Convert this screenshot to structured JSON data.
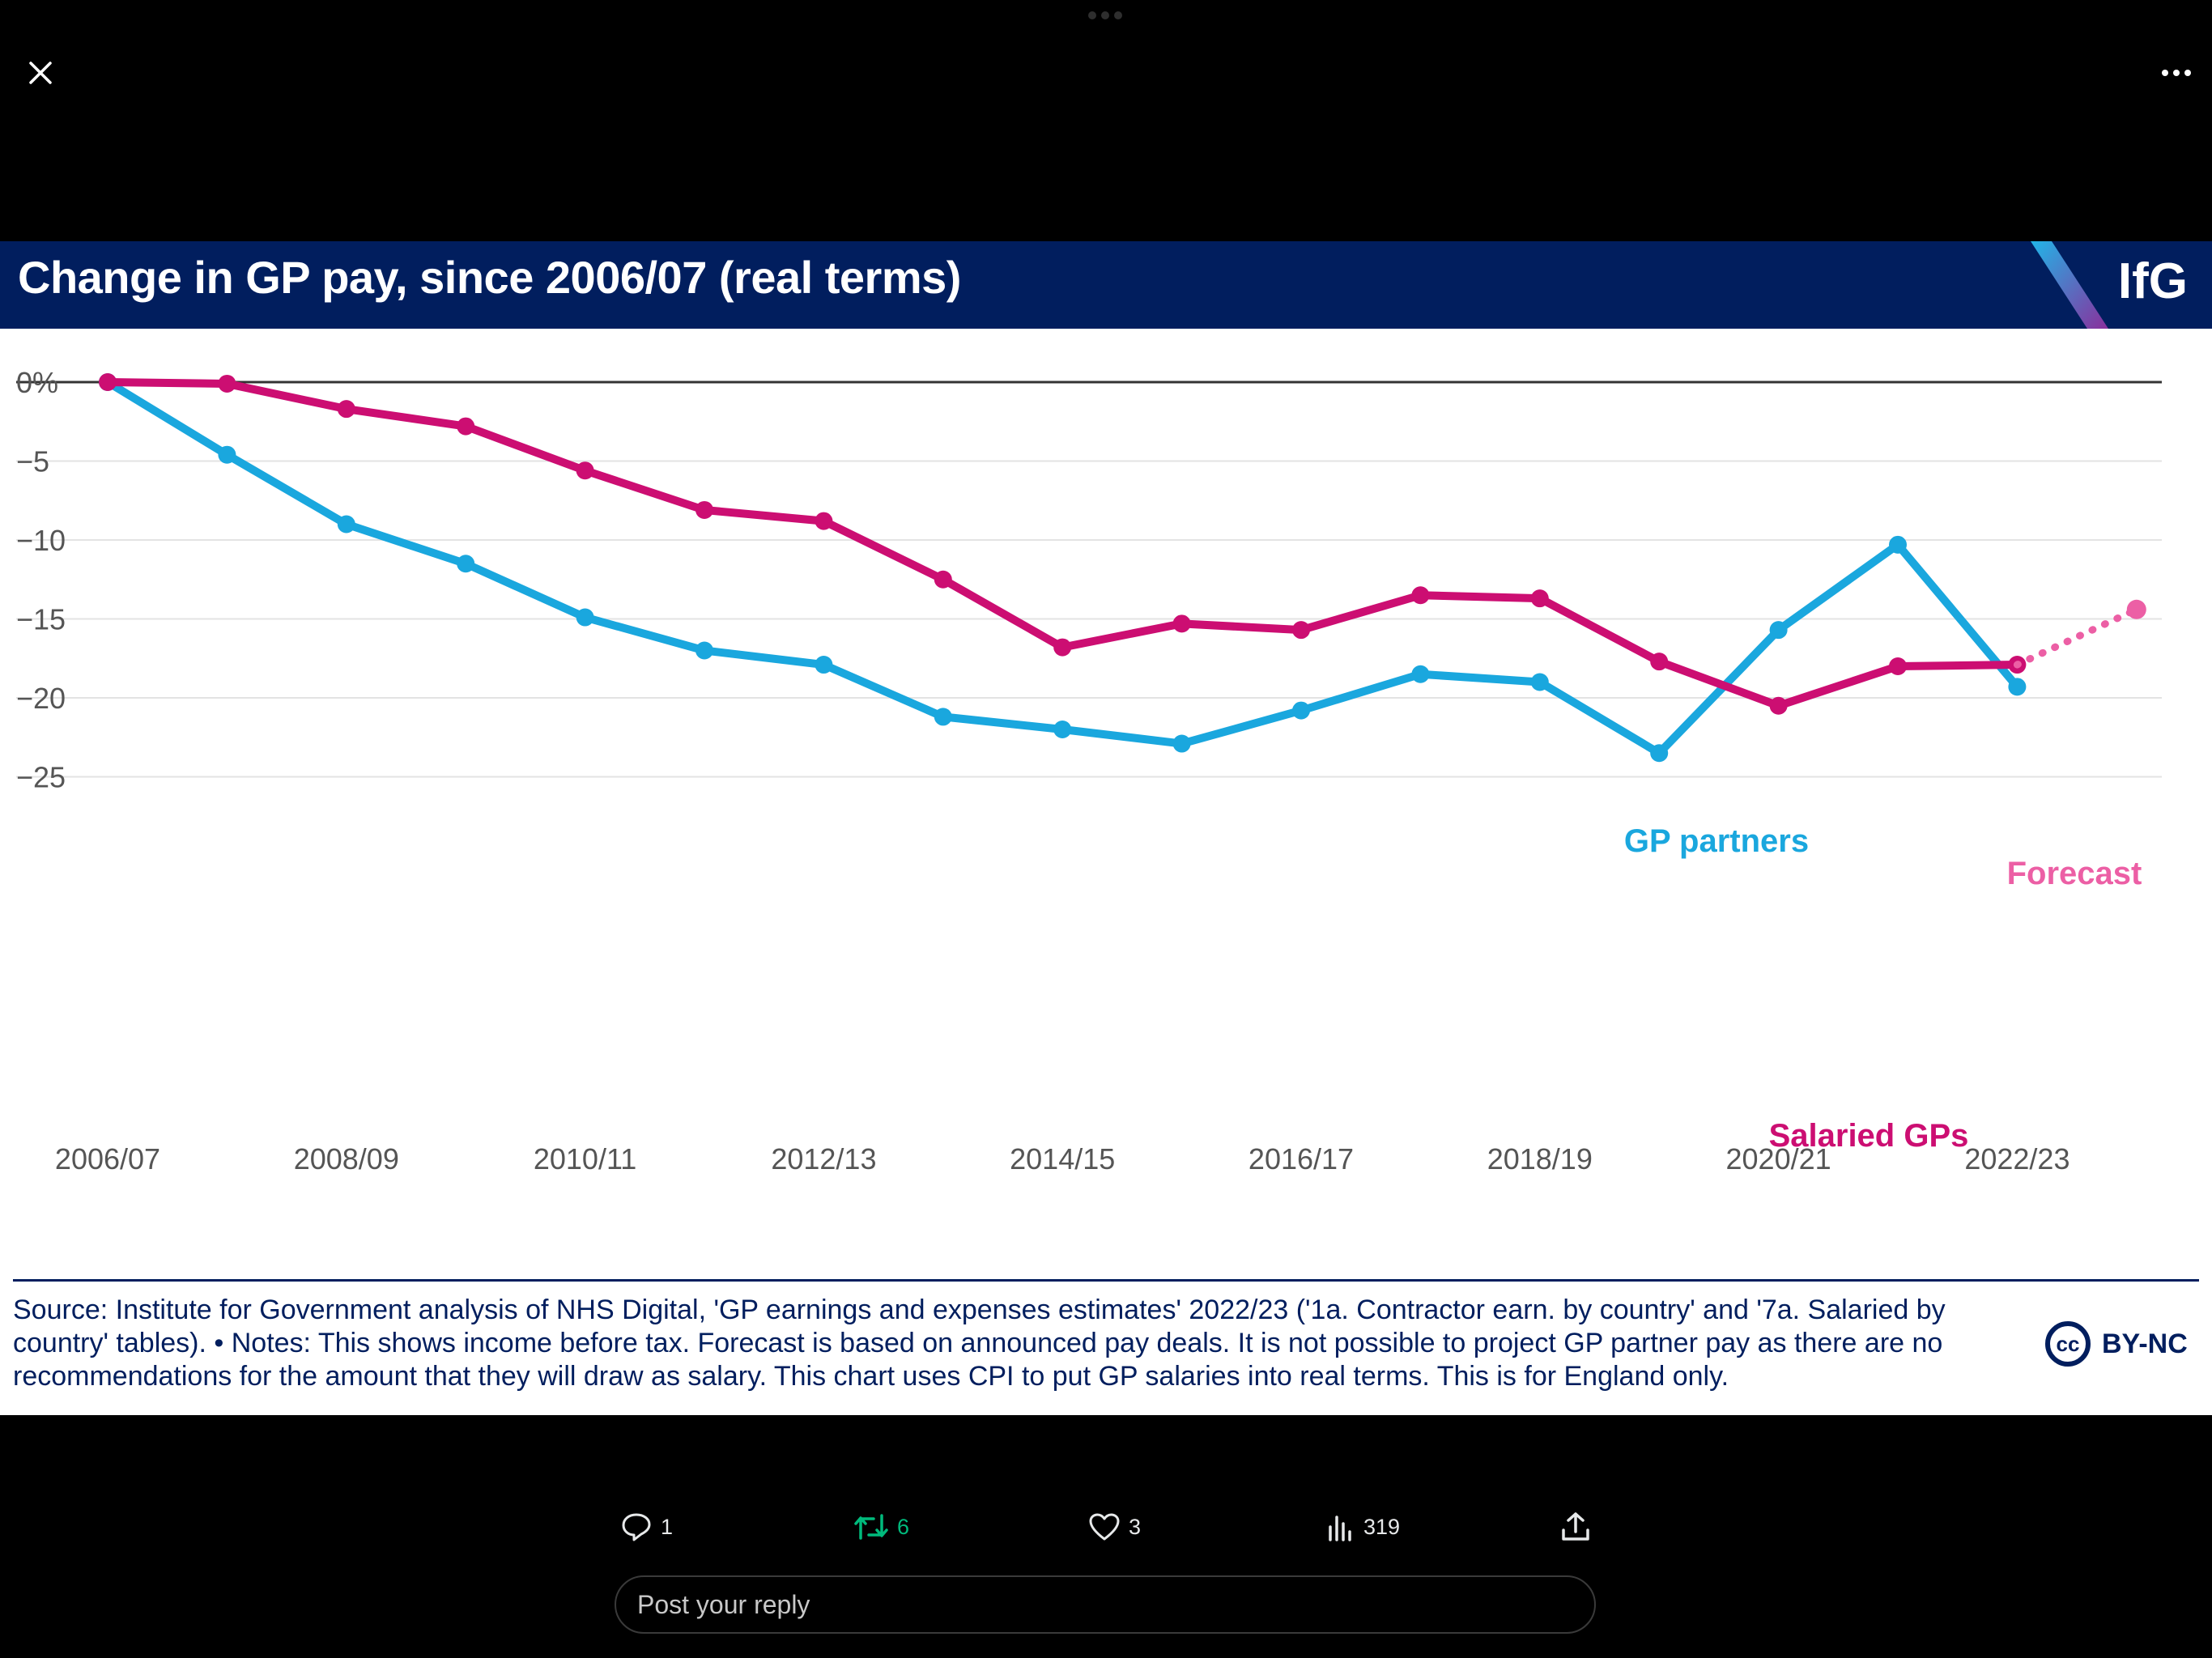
{
  "viewer": {
    "close_icon": "close-icon",
    "more_icon": "more-horizontal-icon"
  },
  "card": {
    "title": "Change in GP pay, since 2006/07 (real terms)",
    "logo": "IfG",
    "source_text": "Source: Institute for Government analysis of NHS Digital, 'GP earnings and expenses estimates' 2022/23 ('1a. Contractor earn. by country' and '7a. Salaried by country' tables). • Notes: This shows income before tax. Forecast is based on announced pay deals. It is not possible to project GP partner pay as there are no recommendations for the amount that they will draw as salary. This chart uses CPI to put GP salaries into real terms. This is for England only.",
    "license_icon": "cc",
    "license_label": "BY-NC",
    "colors": {
      "header_bg": "#011e5e",
      "gp_partners": "#1aa7de",
      "salaried": "#cc0e72",
      "forecast": "#ec5fa5"
    }
  },
  "chart_data": {
    "type": "line",
    "title": "Change in GP pay, since 2006/07 (real terms)",
    "x": [
      "2006/07",
      "2007/08",
      "2008/09",
      "2009/10",
      "2010/11",
      "2011/12",
      "2012/13",
      "2013/14",
      "2014/15",
      "2015/16",
      "2016/17",
      "2017/18",
      "2018/19",
      "2019/20",
      "2020/21",
      "2021/22",
      "2022/23",
      "2023/24"
    ],
    "x_tick_labels": [
      "2006/07",
      "2008/09",
      "2010/11",
      "2012/13",
      "2014/15",
      "2016/17",
      "2018/19",
      "2020/21",
      "2022/23"
    ],
    "y_ticks": [
      "0%",
      "−5",
      "−10",
      "−15",
      "−20",
      "−25"
    ],
    "ylim": [
      -25,
      0
    ],
    "grid": true,
    "series": [
      {
        "name": "GP partners",
        "color": "#1aa7de",
        "values": [
          0,
          -4.6,
          -9.0,
          -11.5,
          -14.9,
          -17.0,
          -17.9,
          -21.2,
          -22.0,
          -22.9,
          -20.8,
          -18.5,
          -19.0,
          -23.5,
          -15.7,
          -10.3,
          -19.3,
          null
        ]
      },
      {
        "name": "Salaried GPs",
        "color": "#cc0e72",
        "values": [
          0,
          -0.1,
          -1.7,
          -2.8,
          -5.6,
          -8.1,
          -8.8,
          -12.5,
          -16.8,
          -15.3,
          -15.7,
          -13.5,
          -13.7,
          -17.7,
          -20.5,
          -18.0,
          -17.9,
          null
        ]
      },
      {
        "name": "Forecast",
        "color": "#ec5fa5",
        "style": "dotted",
        "values": [
          null,
          null,
          null,
          null,
          null,
          null,
          null,
          null,
          null,
          null,
          null,
          null,
          null,
          null,
          null,
          null,
          -17.9,
          -14.4
        ]
      }
    ]
  },
  "actions": {
    "reply_count": "1",
    "retweet_count": "6",
    "like_count": "3",
    "view_count": "319"
  },
  "reply": {
    "placeholder": "Post your reply"
  }
}
